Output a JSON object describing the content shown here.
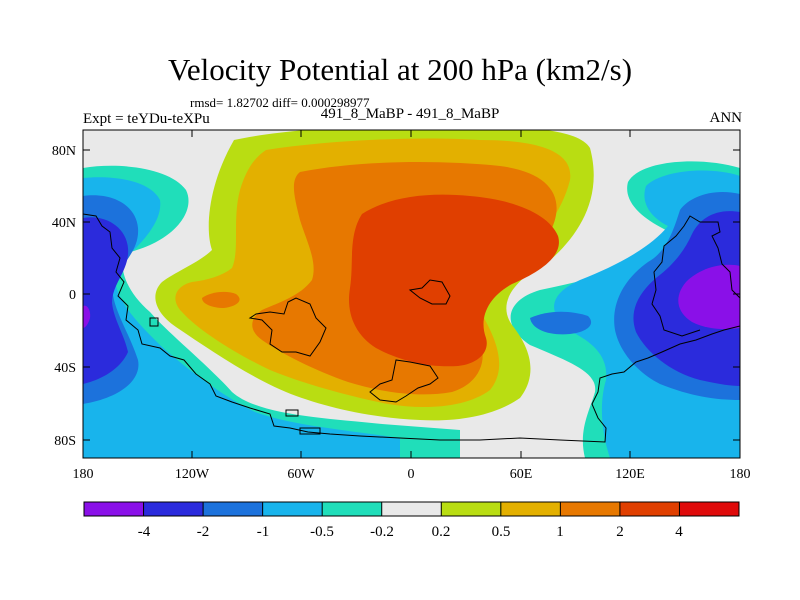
{
  "header": {
    "title": "Velocity Potential at 200 hPa (km2/s)",
    "stats": "rmsd= 1.82702 diff= 0.000298977",
    "left_label": "Expt = teYDu-teXPu",
    "center_label": "491_8_MaBP - 491_8_MaBP",
    "right_label": "ANN"
  },
  "axes": {
    "y_ticks": [
      "80N",
      "40N",
      "0",
      "40S",
      "80S"
    ],
    "x_ticks": [
      "180",
      "120W",
      "60W",
      "0",
      "60E",
      "120E",
      "180"
    ]
  },
  "colorbar": {
    "labels": [
      "-4",
      "-2",
      "-1",
      "-0.5",
      "-0.2",
      "0.2",
      "0.5",
      "1",
      "2",
      "4"
    ],
    "colors": [
      "#8a10e8",
      "#2b2bdc",
      "#1c72dc",
      "#18b4ec",
      "#20deba",
      "#e9e9e9",
      "#b9dd12",
      "#e3b000",
      "#e77800",
      "#e03f00",
      "#df0a0a"
    ]
  }
}
